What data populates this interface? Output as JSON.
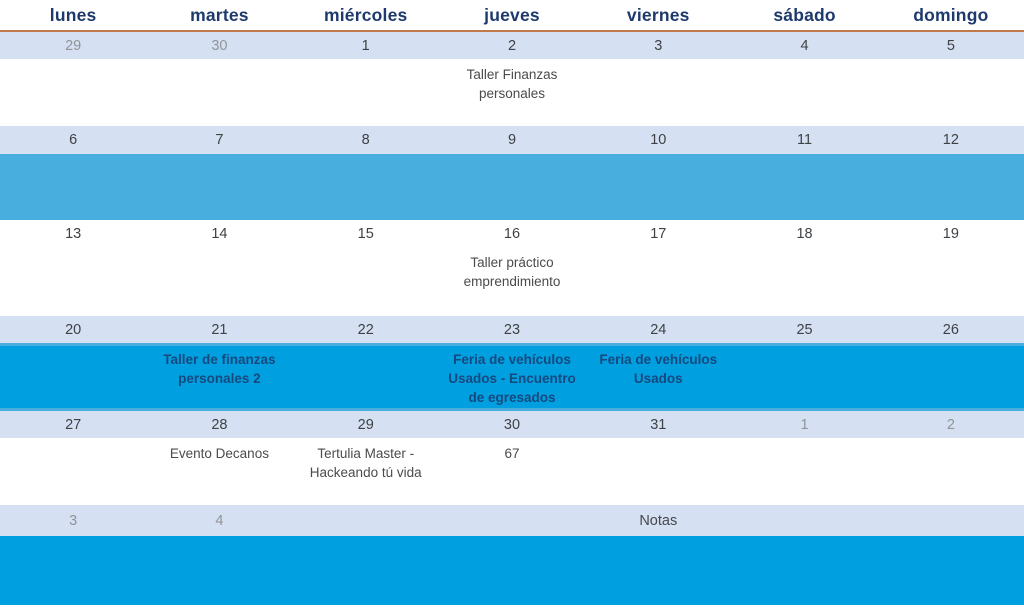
{
  "calendar": {
    "weekday_headers": [
      "lunes",
      "martes",
      "miércoles",
      "jueves",
      "viernes",
      "sábado",
      "domingo"
    ],
    "weeks": [
      {
        "dates": [
          "29",
          "30",
          "1",
          "2",
          "3",
          "4",
          "5"
        ],
        "events": [
          "",
          "",
          "",
          "Taller Finanzas personales",
          "",
          "",
          ""
        ]
      },
      {
        "dates": [
          "6",
          "7",
          "8",
          "9",
          "10",
          "11",
          "12"
        ],
        "events": [
          "",
          "",
          "",
          "",
          "",
          "",
          ""
        ]
      },
      {
        "dates": [
          "13",
          "14",
          "15",
          "16",
          "17",
          "18",
          "19"
        ],
        "events": [
          "",
          "",
          "",
          "Taller práctico emprendimiento",
          "",
          "",
          ""
        ]
      },
      {
        "dates": [
          "20",
          "21",
          "22",
          "23",
          "24",
          "25",
          "26"
        ],
        "events": [
          "",
          "Taller de finanzas personales 2",
          "",
          "Feria de vehículos Usados -  Encuentro de egresados",
          "Feria de vehículos Usados",
          "",
          ""
        ]
      },
      {
        "dates": [
          "27",
          "28",
          "29",
          "30",
          "31",
          "1",
          "2"
        ],
        "events": [
          "",
          "Evento Decanos",
          "Tertulia Master - Hackeando tú vida",
          "67",
          "",
          "",
          ""
        ]
      },
      {
        "dates": [
          "3",
          "4",
          "",
          "",
          "",
          "",
          ""
        ],
        "notas_label": "Notas"
      }
    ],
    "colors": {
      "header_text": "#1e3a6c",
      "header_divider": "#c07a4a",
      "date_strip_bg": "#d5e0f2",
      "band_light_blue": "#47aedd",
      "band_dark_blue": "#009fe0",
      "date_text": "#3e4245",
      "muted_date_text": "#919499",
      "event_text": "#4b4b4b",
      "band_event_text": "#16497e"
    }
  }
}
